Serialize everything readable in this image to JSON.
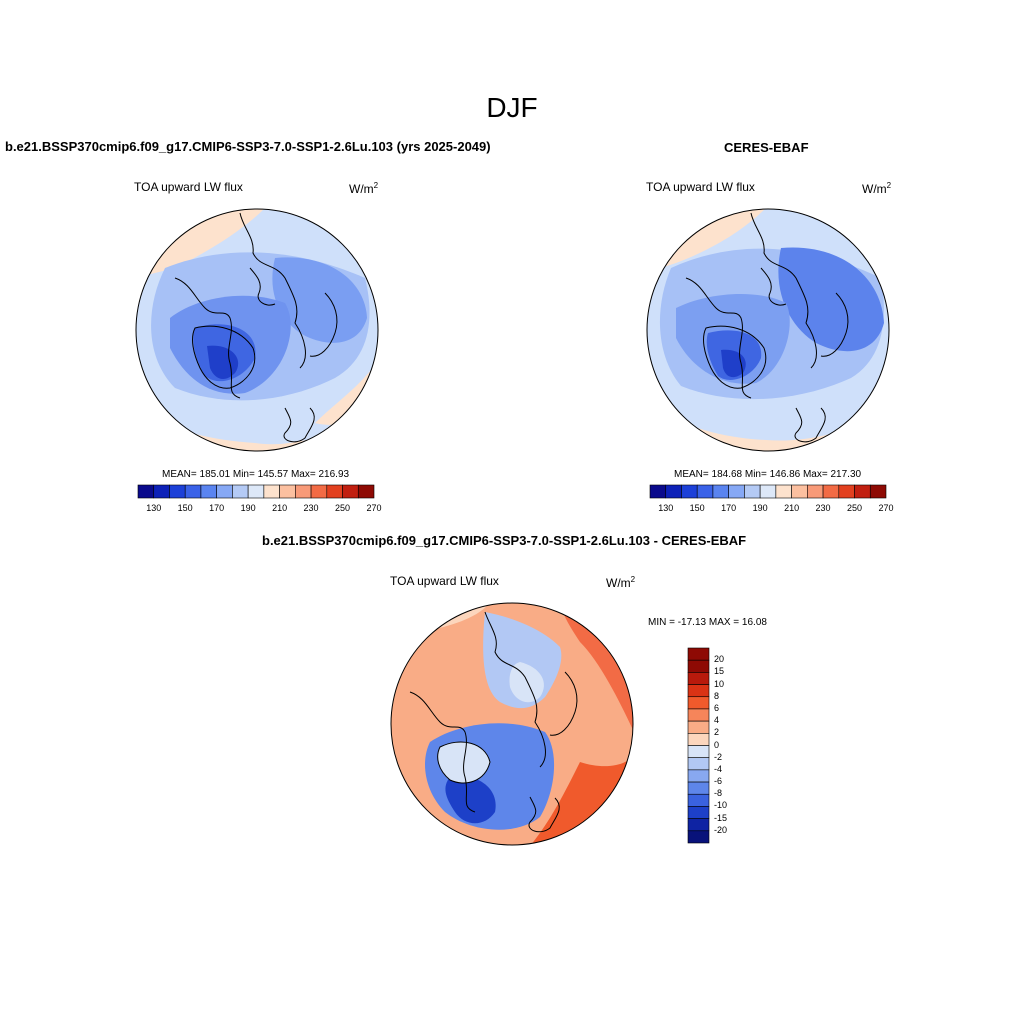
{
  "season": "DJF",
  "panels": [
    {
      "title": "b.e21.BSSP370cmip6.f09_g17.CMIP6-SSP3-7.0-SSP1-2.6Lu.103 (yrs 2025-2049)",
      "variable": "TOA upward LW flux",
      "units": "W/m",
      "units_sup": "2",
      "stats": "MEAN= 185.01  Min= 145.57  Max= 216.93"
    },
    {
      "title": "CERES-EBAF",
      "variable": "TOA upward LW flux",
      "units": "W/m",
      "units_sup": "2",
      "stats": "MEAN= 184.68  Min= 146.86  Max= 217.30"
    },
    {
      "title": "b.e21.BSSP370cmip6.f09_g17.CMIP6-SSP3-7.0-SSP1-2.6Lu.103 - CERES-EBAF",
      "variable": "TOA upward LW flux",
      "units": "W/m",
      "units_sup": "2",
      "stats": "MIN = -17.13 MAX =  16.08"
    }
  ],
  "abs_colorbar": {
    "colors": [
      "#0a0a8c",
      "#0d21b8",
      "#1c40d8",
      "#3a62e8",
      "#5a84f0",
      "#86a8f5",
      "#b4caf5",
      "#dde8f8",
      "#fde2cd",
      "#fcc0a0",
      "#f89a78",
      "#f26b45",
      "#e2401f",
      "#c11f10",
      "#8e0a04"
    ],
    "tick_labels": [
      "130",
      "150",
      "170",
      "190",
      "210",
      "230",
      "250",
      "270"
    ]
  },
  "diff_colorbar": {
    "colors": [
      "#8e0a04",
      "#b81a0c",
      "#da3315",
      "#f05a2c",
      "#f6855a",
      "#f9ac86",
      "#fcd6bd",
      "#d8e4f7",
      "#b2c8f4",
      "#88a8f0",
      "#5e86ea",
      "#3a62df",
      "#1d40c8",
      "#0e23a3",
      "#08127a"
    ],
    "tick_labels": [
      "20",
      "15",
      "10",
      "8",
      "6",
      "4",
      "2",
      "0",
      "-2",
      "-4",
      "-6",
      "-8",
      "-10",
      "-15",
      "-20"
    ]
  },
  "colors": {
    "coast": "#000000",
    "background": "#ffffff"
  }
}
